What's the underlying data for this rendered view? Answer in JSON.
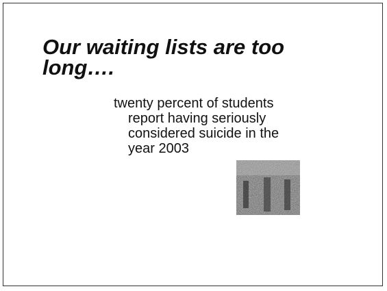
{
  "slide": {
    "title_lines": [
      "Our waiting lists are too",
      "long…."
    ],
    "body_lines": [
      "twenty percent of students",
      "report having seriously",
      "considered suicide in the",
      "year 2003"
    ]
  }
}
